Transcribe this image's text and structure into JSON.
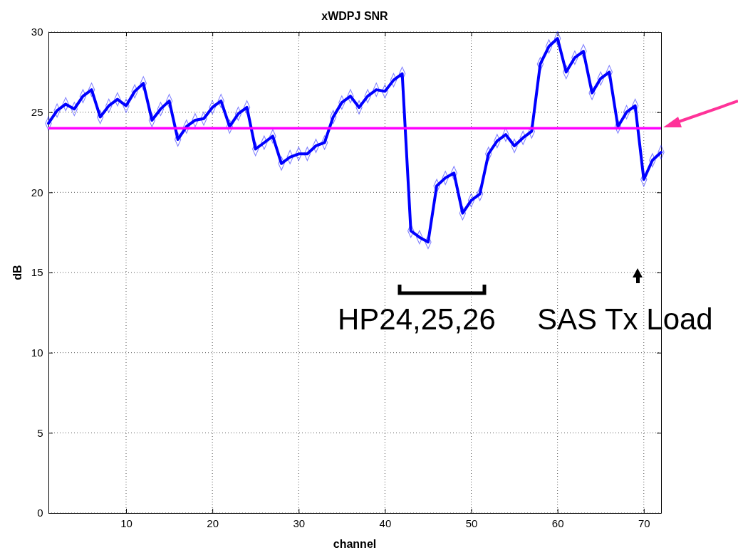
{
  "chart_data": {
    "type": "line",
    "title": "xWDPJ SNR",
    "xlabel": "channel",
    "ylabel": "dB",
    "x": [
      1,
      2,
      3,
      4,
      5,
      6,
      7,
      8,
      9,
      10,
      11,
      12,
      13,
      14,
      15,
      16,
      17,
      18,
      19,
      20,
      21,
      22,
      23,
      24,
      25,
      26,
      27,
      28,
      29,
      30,
      31,
      32,
      33,
      34,
      35,
      36,
      37,
      38,
      39,
      40,
      41,
      42,
      43,
      44,
      45,
      46,
      47,
      48,
      49,
      50,
      51,
      52,
      53,
      54,
      55,
      56,
      57,
      58,
      59,
      60,
      61,
      62,
      63,
      64,
      65,
      66,
      67,
      68,
      69,
      70,
      71,
      72
    ],
    "series": [
      {
        "color": "#0000ff",
        "values": [
          24.3,
          25.1,
          25.5,
          25.2,
          26.0,
          26.4,
          24.7,
          25.4,
          25.8,
          25.4,
          26.3,
          26.8,
          24.5,
          25.2,
          25.7,
          23.3,
          24.1,
          24.5,
          24.6,
          25.3,
          25.7,
          24.1,
          24.9,
          25.3,
          22.7,
          23.1,
          23.5,
          21.8,
          22.2,
          22.4,
          22.4,
          22.9,
          23.1,
          24.7,
          25.6,
          26.0,
          25.3,
          26.0,
          26.4,
          26.3,
          27.0,
          27.4,
          17.6,
          17.2,
          16.9,
          20.4,
          20.9,
          21.2,
          18.7,
          19.5,
          19.9,
          22.4,
          23.2,
          23.6,
          22.9,
          23.4,
          23.8,
          28.0,
          29.1,
          29.6,
          27.5,
          28.4,
          28.8,
          26.2,
          27.1,
          27.5,
          24.1,
          25.0,
          25.4,
          20.8,
          22.0,
          22.5
        ]
      }
    ],
    "xlim": [
      1,
      72
    ],
    "xticks": [
      10,
      20,
      30,
      40,
      50,
      60,
      70
    ],
    "ylim": [
      0,
      30
    ],
    "yticks": [
      0,
      5,
      10,
      15,
      20,
      25,
      30
    ],
    "grid": true,
    "marker": "diamond",
    "line_style": "solid",
    "ref_lines": [
      {
        "axis": "y",
        "value": 24,
        "color": "#ff00ff"
      }
    ],
    "annotations": [
      "HP24,25,26",
      "SAS Tx Load"
    ]
  }
}
